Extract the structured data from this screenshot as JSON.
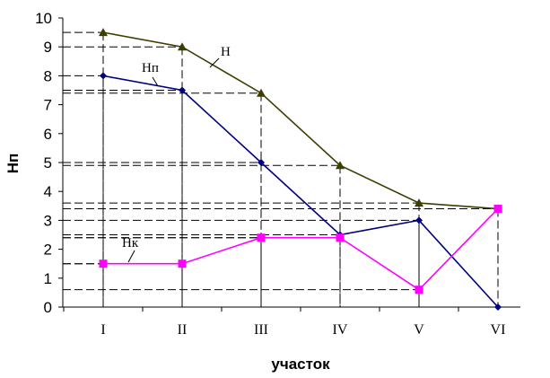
{
  "chart_data": {
    "type": "line",
    "title": "",
    "xlabel": "участок",
    "ylabel": "Нп",
    "categories": [
      "I",
      "II",
      "III",
      "IV",
      "V",
      "VI"
    ],
    "ylim": [
      0,
      10
    ],
    "yticks": [
      0,
      1,
      2,
      3,
      4,
      5,
      6,
      7,
      8,
      9,
      10
    ],
    "grid": false,
    "legend": "none",
    "series": [
      {
        "name": "Н",
        "values": [
          9.5,
          9.0,
          7.4,
          4.9,
          3.6,
          3.4
        ],
        "color": "#3d3d00",
        "marker": "triangle"
      },
      {
        "name": "Нп",
        "values": [
          8.0,
          7.5,
          5.0,
          2.5,
          3.0,
          0.0
        ],
        "color": "#000080",
        "marker": "diamond"
      },
      {
        "name": "Нк",
        "values": [
          1.5,
          1.5,
          2.4,
          2.4,
          0.6,
          3.4
        ],
        "color": "#ff00ff",
        "marker": "square"
      }
    ]
  }
}
